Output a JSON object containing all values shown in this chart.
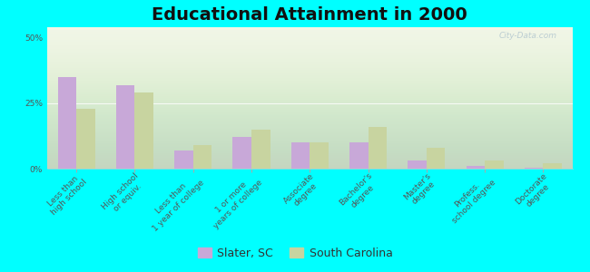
{
  "title": "Educational Attainment in 2000",
  "categories": [
    "Less than\nhigh school",
    "High school\nor equiv.",
    "Less than\n1 year of college",
    "1 or more\nyears of college",
    "Associate\ndegree",
    "Bachelor's\ndegree",
    "Master's\ndegree",
    "Profess.\nschool degree",
    "Doctorate\ndegree"
  ],
  "slater_values": [
    35,
    32,
    7,
    12,
    10,
    10,
    3,
    1,
    0.5
  ],
  "sc_values": [
    23,
    29,
    9,
    15,
    10,
    16,
    8,
    3,
    2
  ],
  "slater_color": "#c8a8d8",
  "sc_color": "#c8d4a0",
  "background_color": "#00ffff",
  "yticks": [
    0,
    25,
    50
  ],
  "ylim": [
    0,
    54
  ],
  "legend_labels": [
    "Slater, SC",
    "South Carolina"
  ],
  "title_fontsize": 14,
  "tick_fontsize": 6.5,
  "legend_fontsize": 9,
  "bar_width": 0.32,
  "watermark": "City-Data.com"
}
